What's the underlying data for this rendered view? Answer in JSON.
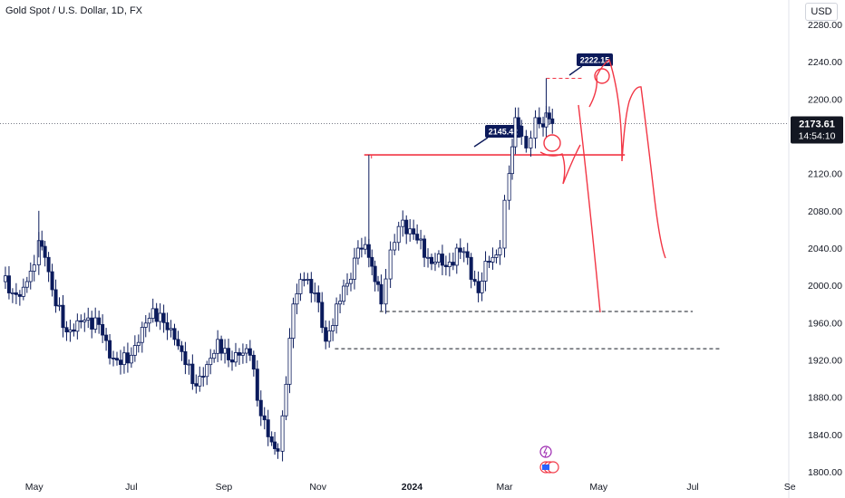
{
  "header": {
    "symbol_title": "Gold Spot / U.S. Dollar, 1D, FX",
    "currency": "USD"
  },
  "chart_data": {
    "type": "candlestick",
    "ylim": [
      1800,
      2280
    ],
    "y_ticks": [
      1800,
      1840,
      1880,
      1920,
      1960,
      2000,
      2040,
      2080,
      2120,
      2160,
      2200,
      2240,
      2280
    ],
    "y_tick_labels": [
      "1800.00",
      "1840.00",
      "1880.00",
      "1920.00",
      "1960.00",
      "2000.00",
      "2040.00",
      "2080.00",
      "2120.00",
      "2160.00",
      "2200.00",
      "2240.00",
      "2280.00"
    ],
    "x_range": [
      "2023-04-10",
      "2024-09-06"
    ],
    "x_ticks": [
      {
        "label": "May",
        "date": "2023-05-01",
        "bold": false
      },
      {
        "label": "Jul",
        "date": "2023-07-03",
        "bold": false
      },
      {
        "label": "Sep",
        "date": "2023-09-01",
        "bold": false
      },
      {
        "label": "Nov",
        "date": "2023-11-01",
        "bold": false
      },
      {
        "label": "2024",
        "date": "2024-01-01",
        "bold": true
      },
      {
        "label": "Mar",
        "date": "2024-03-01",
        "bold": false
      },
      {
        "label": "May",
        "date": "2024-05-01",
        "bold": false
      },
      {
        "label": "Jul",
        "date": "2024-07-01",
        "bold": false
      },
      {
        "label": "Se",
        "date": "2024-09-02",
        "bold": false
      }
    ],
    "candles": [
      {
        "date": "2023-04-10",
        "close": 2004
      },
      {
        "date": "2023-04-17",
        "close": 1992
      },
      {
        "date": "2023-04-24",
        "close": 1998
      },
      {
        "date": "2023-05-01",
        "close": 2022
      },
      {
        "date": "2023-05-04",
        "close": 2048
      },
      {
        "date": "2023-05-08",
        "close": 2030
      },
      {
        "date": "2023-05-15",
        "close": 1978
      },
      {
        "date": "2023-05-22",
        "close": 1950
      },
      {
        "date": "2023-05-29",
        "close": 1962
      },
      {
        "date": "2023-06-05",
        "close": 1965
      },
      {
        "date": "2023-06-12",
        "close": 1958
      },
      {
        "date": "2023-06-19",
        "close": 1922
      },
      {
        "date": "2023-06-26",
        "close": 1915
      },
      {
        "date": "2023-07-03",
        "close": 1925
      },
      {
        "date": "2023-07-10",
        "close": 1955
      },
      {
        "date": "2023-07-17",
        "close": 1975
      },
      {
        "date": "2023-07-24",
        "close": 1960
      },
      {
        "date": "2023-07-31",
        "close": 1942
      },
      {
        "date": "2023-08-07",
        "close": 1915
      },
      {
        "date": "2023-08-14",
        "close": 1892
      },
      {
        "date": "2023-08-21",
        "close": 1915
      },
      {
        "date": "2023-08-28",
        "close": 1942
      },
      {
        "date": "2023-09-04",
        "close": 1920
      },
      {
        "date": "2023-09-11",
        "close": 1925
      },
      {
        "date": "2023-09-18",
        "close": 1925
      },
      {
        "date": "2023-09-25",
        "close": 1860
      },
      {
        "date": "2023-10-02",
        "close": 1832
      },
      {
        "date": "2023-10-06",
        "close": 1822
      },
      {
        "date": "2023-10-09",
        "close": 1860
      },
      {
        "date": "2023-10-16",
        "close": 1980
      },
      {
        "date": "2023-10-23",
        "close": 2006
      },
      {
        "date": "2023-10-30",
        "close": 1992
      },
      {
        "date": "2023-11-06",
        "close": 1940
      },
      {
        "date": "2023-11-13",
        "close": 1980
      },
      {
        "date": "2023-11-20",
        "close": 2002
      },
      {
        "date": "2023-11-27",
        "close": 2040
      },
      {
        "date": "2023-12-04",
        "close": 2030
      },
      {
        "date": "2023-12-08",
        "close": 2004
      },
      {
        "date": "2023-12-12",
        "close": 1980
      },
      {
        "date": "2023-12-18",
        "close": 2038
      },
      {
        "date": "2023-12-26",
        "close": 2070
      },
      {
        "date": "2024-01-02",
        "close": 2055
      },
      {
        "date": "2024-01-09",
        "close": 2030
      },
      {
        "date": "2024-01-16",
        "close": 2025
      },
      {
        "date": "2024-01-23",
        "close": 2020
      },
      {
        "date": "2024-01-30",
        "close": 2040
      },
      {
        "date": "2024-02-06",
        "close": 2030
      },
      {
        "date": "2024-02-13",
        "close": 1992
      },
      {
        "date": "2024-02-20",
        "close": 2025
      },
      {
        "date": "2024-02-27",
        "close": 2040
      },
      {
        "date": "2024-03-04",
        "close": 2120
      },
      {
        "date": "2024-03-08",
        "close": 2180
      },
      {
        "date": "2024-03-12",
        "close": 2160
      },
      {
        "date": "2024-03-18",
        "close": 2158
      },
      {
        "date": "2024-03-21",
        "close": 2180
      },
      {
        "date": "2024-03-26",
        "close": 2170
      },
      {
        "date": "2024-03-28",
        "close": 2185
      },
      {
        "date": "2024-04-01",
        "close": 2173.61
      }
    ],
    "last_price": {
      "value": 2173.61,
      "label": "2173.61",
      "countdown": "14:54:10"
    },
    "annotations": [
      {
        "type": "price_callout",
        "label": "2145.42",
        "price": 2145.42
      },
      {
        "type": "price_callout",
        "label": "2222.15",
        "price": 2222.15
      },
      {
        "type": "horizontal_line",
        "price": 2140,
        "from": "2023-12-01",
        "to": "2024-05-18",
        "color": "#f23645"
      },
      {
        "type": "dashed_line",
        "price": 1972,
        "from": "2023-12-11",
        "to": "2024-07-01",
        "color": "#131722"
      },
      {
        "type": "dashed_line",
        "price": 1932,
        "from": "2023-11-12",
        "to": "2024-07-20",
        "color": "#131722"
      },
      {
        "type": "dashed_line",
        "price": 2222.15,
        "from": "2024-03-28",
        "to": "2024-04-20",
        "color": "#f23645"
      }
    ],
    "colors": {
      "up": "#0b1b5c",
      "down": "#0b1b5c",
      "annotation": "#f23645",
      "callout_bg": "#0c1a5a",
      "badge_bg": "#131722"
    }
  }
}
